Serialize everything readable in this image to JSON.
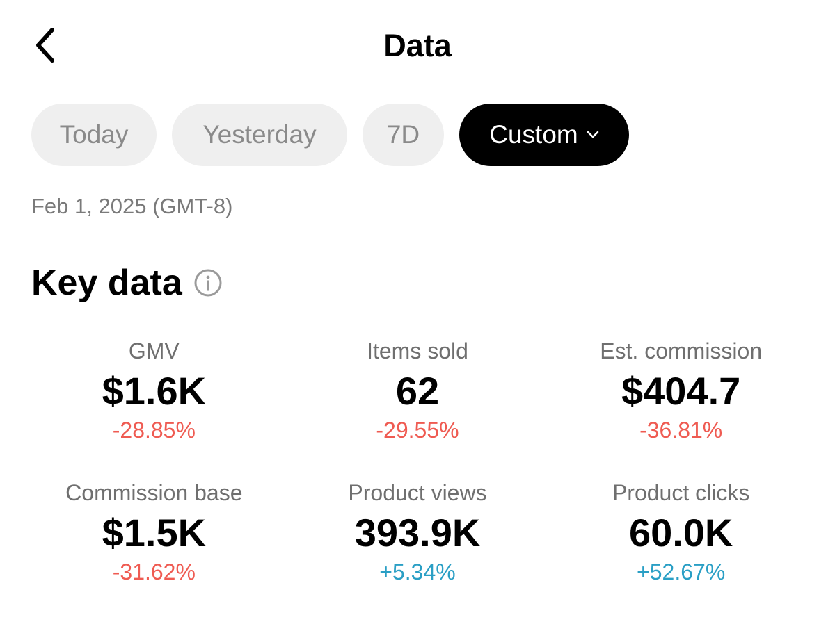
{
  "header": {
    "title": "Data"
  },
  "tabs": [
    {
      "label": "Today"
    },
    {
      "label": "Yesterday"
    },
    {
      "label": "7D"
    },
    {
      "label": "Custom"
    }
  ],
  "active_tab": "Custom",
  "date_label": "Feb 1, 2025 (GMT-8)",
  "section": {
    "title": "Key data"
  },
  "metrics": [
    {
      "label": "GMV",
      "value": "$1.6K",
      "change": "-28.85%"
    },
    {
      "label": "Items sold",
      "value": "62",
      "change": "-29.55%"
    },
    {
      "label": "Est. commission",
      "value": "$404.7",
      "change": "-36.81%"
    },
    {
      "label": "Commission base",
      "value": "$1.5K",
      "change": "-31.62%"
    },
    {
      "label": "Product views",
      "value": "393.9K",
      "change": "+5.34%"
    },
    {
      "label": "Product clicks",
      "value": "60.0K",
      "change": "+52.67%"
    }
  ],
  "colors": {
    "negative": "#ef5b52",
    "positive": "#2a9fc5",
    "active_tab_bg": "#000000",
    "tab_bg": "#efefef"
  },
  "icons": {
    "back": "chevron-left-icon",
    "dropdown": "chevron-down-icon",
    "info": "info-icon"
  }
}
